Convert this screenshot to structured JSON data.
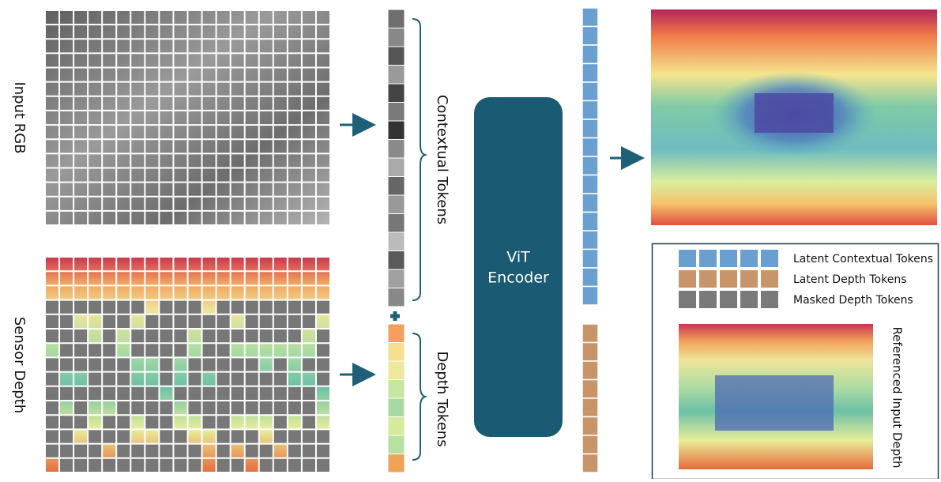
{
  "inputs": {
    "rgb": "Input RGB",
    "depth": "Sensor Depth"
  },
  "tokens": {
    "contextual": "Contextual Tokens",
    "depth": "Depth Tokens"
  },
  "encoder": {
    "lines": [
      "ViT",
      "Encoder"
    ]
  },
  "legend": {
    "items": [
      "Latent Contextual Tokens",
      "Latent Depth Tokens",
      "Masked Depth Tokens"
    ],
    "image_label": "Referenced Input Depth"
  }
}
